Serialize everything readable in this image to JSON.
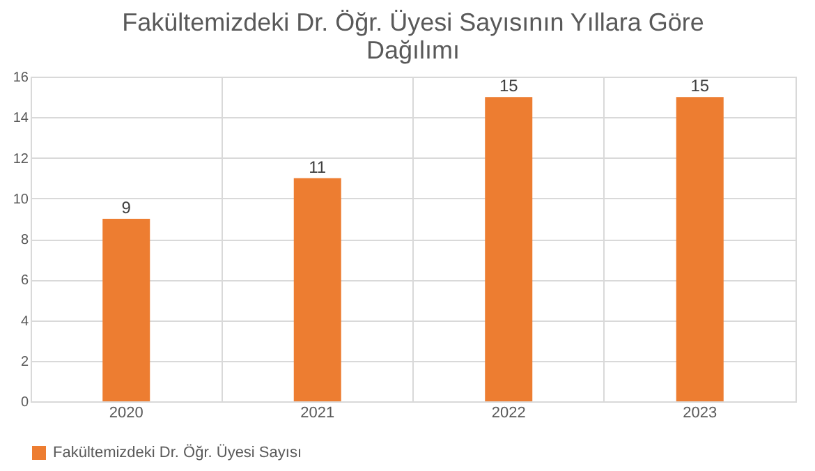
{
  "chart_data": {
    "type": "bar",
    "title": "Fakültemizdeki Dr. Öğr. Üyesi Sayısının Yıllara Göre Dağılımı",
    "categories": [
      "2020",
      "2021",
      "2022",
      "2023"
    ],
    "series": [
      {
        "name": "Fakültemizdeki Dr. Öğr. Üyesi Sayısı",
        "color": "#ed7d31",
        "values": [
          9,
          11,
          15,
          15
        ]
      }
    ],
    "ylim": [
      0,
      16
    ],
    "yticks": [
      0,
      2,
      4,
      6,
      8,
      10,
      12,
      14,
      16
    ],
    "grid": true,
    "legend": "bottom",
    "data_labels": true
  }
}
